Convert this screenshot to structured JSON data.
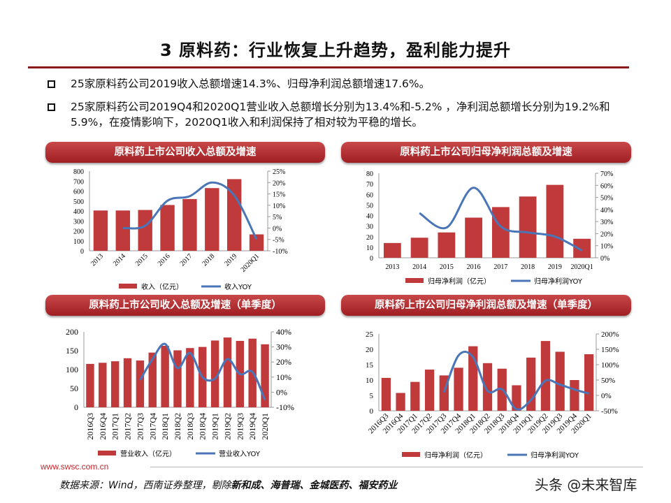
{
  "title": "3 原料药：行业恢复上升趋势，盈利能力提升",
  "bullets": [
    "25家原料药公司2019收入总额增速14.3%、归母净利润总额增速17.6%。",
    "25家原料药公司2019Q4和2020Q1营业收入总额增长分别为13.4%和-5.2% ，净利润总额增长分别为19.2%和5.9%，在疫情影响下，2020Q1收入和利润保持了相对较为平稳的增长。"
  ],
  "footer": {
    "url": "www.swsc.com.cn",
    "source_prefix": "数据来源：Wind，西南证券整理，剔除",
    "source_bold": "新和成、海普瑞、金城医药、福安药业",
    "watermark": "头条 @未来智库"
  },
  "colors": {
    "bar": "#c0393b",
    "line": "#4a76b8",
    "header": "#b0282c"
  },
  "chart_data": [
    {
      "type": "bar+line",
      "title": "原料药上市公司收入总额及增速",
      "categories": [
        "2013",
        "2014",
        "2015",
        "2016",
        "2017",
        "2018",
        "2019",
        "2020Q1"
      ],
      "series": [
        {
          "name": "收入（亿元）",
          "type": "bar",
          "axis": "left",
          "values": [
            405,
            405,
            410,
            460,
            520,
            630,
            720,
            165
          ]
        },
        {
          "name": "收入YOY",
          "type": "line",
          "axis": "right",
          "values": [
            null,
            0,
            1,
            12,
            14,
            20,
            14.3,
            -5
          ]
        }
      ],
      "ylim_left": [
        0,
        800
      ],
      "ystep_left": 100,
      "ylim_right": [
        -10,
        25
      ],
      "ystep_right": 5,
      "legend": "bottom"
    },
    {
      "type": "bar+line",
      "title": "原料药上市公司归母净利润总额及增速",
      "categories": [
        "2013",
        "2014",
        "2015",
        "2016",
        "2017",
        "2018",
        "2019",
        "2020Q1"
      ],
      "series": [
        {
          "name": "归母净利润（亿元）",
          "type": "bar",
          "axis": "left",
          "values": [
            14,
            19,
            24,
            38,
            48,
            58,
            69,
            18
          ]
        },
        {
          "name": "归母净利润YOY",
          "type": "line",
          "axis": "right",
          "values": [
            null,
            37,
            25,
            58,
            26,
            21,
            17.6,
            6
          ]
        }
      ],
      "ylim_left": [
        0,
        80
      ],
      "ystep_left": 10,
      "ylim_right": [
        0,
        70
      ],
      "ystep_right": 10,
      "legend": "bottom"
    },
    {
      "type": "bar+line",
      "title": "原料药上市公司收入总额及增速（单季度）",
      "categories": [
        "2016Q3",
        "2016Q4",
        "2017Q1",
        "2017Q2",
        "2017Q3",
        "2017Q4",
        "2018Q1",
        "2018Q2",
        "2018Q3",
        "2018Q4",
        "2019Q1",
        "2019Q2",
        "2019Q3",
        "2019Q4",
        "2020Q1"
      ],
      "series": [
        {
          "name": "营业收入（亿元）",
          "type": "bar",
          "axis": "left",
          "values": [
            115,
            118,
            122,
            130,
            124,
            145,
            163,
            151,
            157,
            160,
            177,
            185,
            176,
            182,
            167
          ]
        },
        {
          "name": "营业收入YOY",
          "type": "line",
          "axis": "right",
          "values": [
            null,
            null,
            null,
            null,
            8,
            22,
            32,
            16,
            26,
            10,
            9,
            22,
            12,
            13.4,
            -5.2
          ]
        }
      ],
      "ylim_left": [
        0,
        200
      ],
      "ystep_left": 50,
      "ylim_right": [
        -10,
        40
      ],
      "ystep_right": 10,
      "legend": "bottom"
    },
    {
      "type": "bar+line",
      "title": "原料药上市公司归母净利润总额及增速（单季度）",
      "categories": [
        "2016Q3",
        "2016Q4",
        "2017Q1",
        "2017Q2",
        "2017Q3",
        "2017Q4",
        "2018Q1",
        "2018Q2",
        "2018Q3",
        "2018Q4",
        "2019Q1",
        "2019Q2",
        "2019Q3",
        "2019Q4",
        "2020Q1"
      ],
      "series": [
        {
          "name": "归母净利润（亿元）",
          "type": "bar",
          "axis": "left",
          "values": [
            10.7,
            5.8,
            9.4,
            13.4,
            11.5,
            14,
            21,
            15.5,
            13.7,
            8.3,
            17.3,
            22.7,
            19.2,
            10,
            18.4
          ]
        },
        {
          "name": "归母净利润YOY",
          "type": "line",
          "axis": "right",
          "values": [
            null,
            null,
            null,
            null,
            10,
            130,
            125,
            15,
            20,
            -45,
            -15,
            48,
            35,
            19.2,
            5.9
          ]
        }
      ],
      "ylim_left": [
        0,
        25
      ],
      "ystep_left": 5,
      "ylim_right": [
        -50,
        200
      ],
      "ystep_right": 50,
      "legend": "bottom"
    }
  ]
}
